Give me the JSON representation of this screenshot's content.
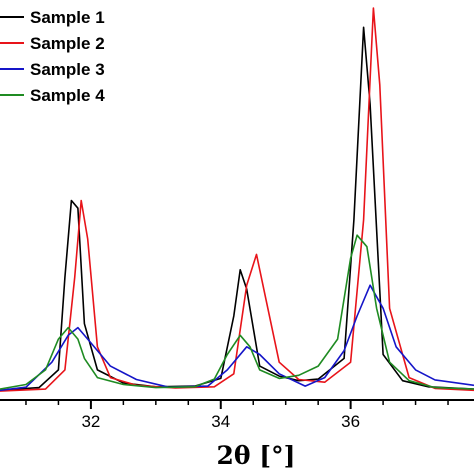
{
  "chart_data": {
    "type": "line",
    "xlabel": "2θ [°]",
    "x_ticks": [
      32,
      34,
      36
    ],
    "xlim": [
      30.6,
      37.9
    ],
    "ylim": [
      0,
      100
    ],
    "legend_position": "top-left",
    "grid": false,
    "series": [
      {
        "name": "Sample 1",
        "color": "#000000",
        "points": [
          [
            30.6,
            0.7
          ],
          [
            31.2,
            1.4
          ],
          [
            31.5,
            6
          ],
          [
            31.6,
            30
          ],
          [
            31.7,
            50
          ],
          [
            31.8,
            48
          ],
          [
            31.9,
            18
          ],
          [
            32.1,
            6
          ],
          [
            32.5,
            2.6
          ],
          [
            33,
            1.6
          ],
          [
            33.6,
            1.8
          ],
          [
            34,
            3.8
          ],
          [
            34.2,
            20
          ],
          [
            34.3,
            32
          ],
          [
            34.4,
            27
          ],
          [
            34.6,
            7
          ],
          [
            34.9,
            4.4
          ],
          [
            35.2,
            3.2
          ],
          [
            35.5,
            3.6
          ],
          [
            35.9,
            9
          ],
          [
            36.05,
            45
          ],
          [
            36.2,
            95
          ],
          [
            36.3,
            75
          ],
          [
            36.5,
            10
          ],
          [
            36.8,
            3.2
          ],
          [
            37.2,
            1.6
          ],
          [
            37.9,
            1.0
          ]
        ]
      },
      {
        "name": "Sample 2",
        "color": "#e8141a",
        "points": [
          [
            30.6,
            0.5
          ],
          [
            31.3,
            1.0
          ],
          [
            31.6,
            6
          ],
          [
            31.75,
            30
          ],
          [
            31.85,
            50
          ],
          [
            31.95,
            40
          ],
          [
            32.1,
            12
          ],
          [
            32.3,
            4
          ],
          [
            32.7,
            2
          ],
          [
            33.3,
            1.3
          ],
          [
            33.9,
            1.6
          ],
          [
            34.2,
            5
          ],
          [
            34.4,
            28
          ],
          [
            34.55,
            36
          ],
          [
            34.7,
            24
          ],
          [
            34.9,
            8
          ],
          [
            35.2,
            3.5
          ],
          [
            35.6,
            2.8
          ],
          [
            36,
            8
          ],
          [
            36.2,
            45
          ],
          [
            36.35,
            100
          ],
          [
            36.45,
            80
          ],
          [
            36.6,
            22
          ],
          [
            36.9,
            4
          ],
          [
            37.3,
            1.2
          ],
          [
            37.9,
            0.7
          ]
        ]
      },
      {
        "name": "Sample 3",
        "color": "#1515c8",
        "points": [
          [
            30.6,
            0.7
          ],
          [
            31,
            1.5
          ],
          [
            31.4,
            8
          ],
          [
            31.65,
            15
          ],
          [
            31.8,
            17
          ],
          [
            32,
            13
          ],
          [
            32.3,
            7
          ],
          [
            32.7,
            3.5
          ],
          [
            33.2,
            1.5
          ],
          [
            33.8,
            1.8
          ],
          [
            34.1,
            6
          ],
          [
            34.4,
            12
          ],
          [
            34.6,
            10
          ],
          [
            34.9,
            5
          ],
          [
            35.3,
            1.8
          ],
          [
            35.6,
            4
          ],
          [
            35.9,
            11
          ],
          [
            36.1,
            20
          ],
          [
            36.3,
            28
          ],
          [
            36.5,
            22
          ],
          [
            36.7,
            12
          ],
          [
            37,
            6
          ],
          [
            37.3,
            3.4
          ],
          [
            37.9,
            2.0
          ]
        ]
      },
      {
        "name": "Sample 4",
        "color": "#1f8b22",
        "points": [
          [
            30.6,
            1.0
          ],
          [
            31,
            2.2
          ],
          [
            31.3,
            6
          ],
          [
            31.5,
            14
          ],
          [
            31.65,
            17
          ],
          [
            31.8,
            14
          ],
          [
            31.9,
            9
          ],
          [
            32.1,
            4
          ],
          [
            32.5,
            2.2
          ],
          [
            33,
            1.4
          ],
          [
            33.6,
            1.6
          ],
          [
            33.9,
            3.6
          ],
          [
            34.1,
            10
          ],
          [
            34.3,
            15
          ],
          [
            34.45,
            12
          ],
          [
            34.6,
            6
          ],
          [
            34.9,
            3.8
          ],
          [
            35.2,
            4.6
          ],
          [
            35.5,
            7
          ],
          [
            35.8,
            14
          ],
          [
            36,
            35
          ],
          [
            36.1,
            41
          ],
          [
            36.25,
            38
          ],
          [
            36.4,
            22
          ],
          [
            36.6,
            8
          ],
          [
            36.9,
            3.2
          ],
          [
            37.3,
            1.4
          ],
          [
            37.9,
            1.0
          ]
        ]
      }
    ]
  }
}
